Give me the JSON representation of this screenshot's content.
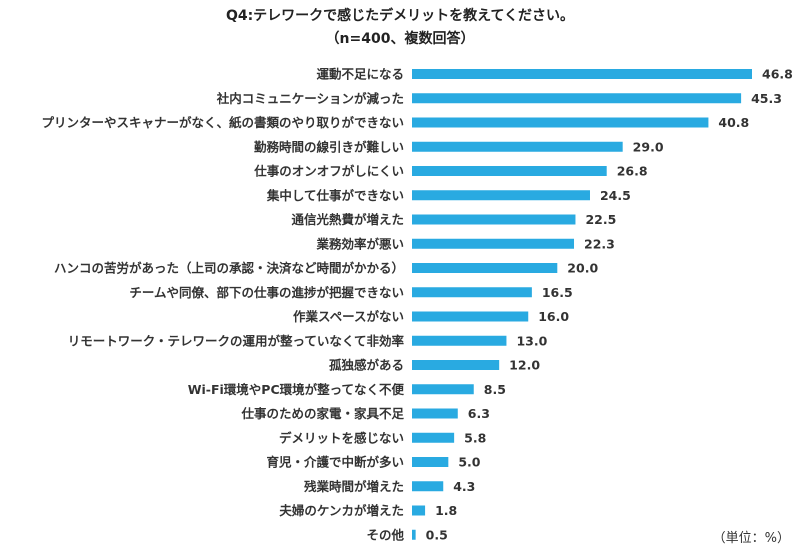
{
  "chart_data": {
    "type": "bar",
    "orientation": "horizontal",
    "title": "Q4:テレワークで感じたデメリットを教えてください。",
    "subtitle": "（n=400、複数回答）",
    "unit_label": "（単位：%）",
    "bar_color": "#29aae1",
    "xlim": [
      0,
      50
    ],
    "grid": false,
    "categories": [
      "運動不足になる",
      "社内コミュニケーションが減った",
      "プリンターやスキャナーがなく、紙の書類のやり取りができない",
      "勤務時間の線引きが難しい",
      "仕事のオンオフがしにくい",
      "集中して仕事ができない",
      "通信光熱費が増えた",
      "業務効率が悪い",
      "ハンコの苦労があった（上司の承認・決済など時間がかかる）",
      "チームや同僚、部下の仕事の進捗が把握できない",
      "作業スペースがない",
      "リモートワーク・テレワークの運用が整っていなくて非効率",
      "孤独感がある",
      "Wi-Fi環境やPC環境が整ってなく不便",
      "仕事のための家電・家具不足",
      "デメリットを感じない",
      "育児・介護で中断が多い",
      "残業時間が増えた",
      "夫婦のケンカが増えた",
      "その他"
    ],
    "values": [
      46.8,
      45.3,
      40.8,
      29.0,
      26.8,
      24.5,
      22.5,
      22.3,
      20.0,
      16.5,
      16.0,
      13.0,
      12.0,
      8.5,
      6.3,
      5.8,
      5.0,
      4.3,
      1.8,
      0.5
    ],
    "value_labels": [
      "46.8",
      "45.3",
      "40.8",
      "29.0",
      "26.8",
      "24.5",
      "22.5",
      "22.3",
      "20.0",
      "16.5",
      "16.0",
      "13.0",
      "12.0",
      "8.5",
      "6.3",
      "5.8",
      "5.0",
      "4.3",
      "1.8",
      "0.5"
    ]
  }
}
